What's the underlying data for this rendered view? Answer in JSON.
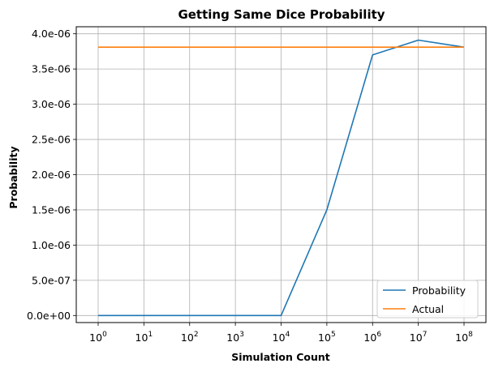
{
  "chart_data": {
    "type": "line",
    "title": "Getting Same Dice Probability",
    "xlabel": "Simulation Count",
    "ylabel": "Probability",
    "x_scale": "log",
    "x": [
      1,
      10,
      100,
      1000,
      10000,
      100000,
      1000000,
      10000000,
      100000000
    ],
    "x_tick_base": "10",
    "x_tick_exponents": [
      "0",
      "1",
      "2",
      "3",
      "4",
      "5",
      "6",
      "7",
      "8"
    ],
    "y_ticks": [
      "0.0e+00",
      "5.0e-07",
      "1.0e-06",
      "1.5e-06",
      "2.0e-06",
      "2.5e-06",
      "3.0e-06",
      "3.5e-06",
      "4.0e-06"
    ],
    "y_tick_values": [
      0,
      5e-07,
      1e-06,
      1.5e-06,
      2e-06,
      2.5e-06,
      3e-06,
      3.5e-06,
      4e-06
    ],
    "ylim": [
      -1e-07,
      4.1e-06
    ],
    "grid": true,
    "legend_position": "lower-right",
    "series": [
      {
        "name": "Probability",
        "color": "#1f77b4",
        "values": [
          0,
          0,
          0,
          0,
          0,
          1.5e-06,
          3.7e-06,
          3.91e-06,
          3.81e-06
        ]
      },
      {
        "name": "Actual",
        "color": "#ff7f0e",
        "values": [
          3.81e-06,
          3.81e-06,
          3.81e-06,
          3.81e-06,
          3.81e-06,
          3.81e-06,
          3.81e-06,
          3.81e-06,
          3.81e-06
        ]
      }
    ]
  }
}
